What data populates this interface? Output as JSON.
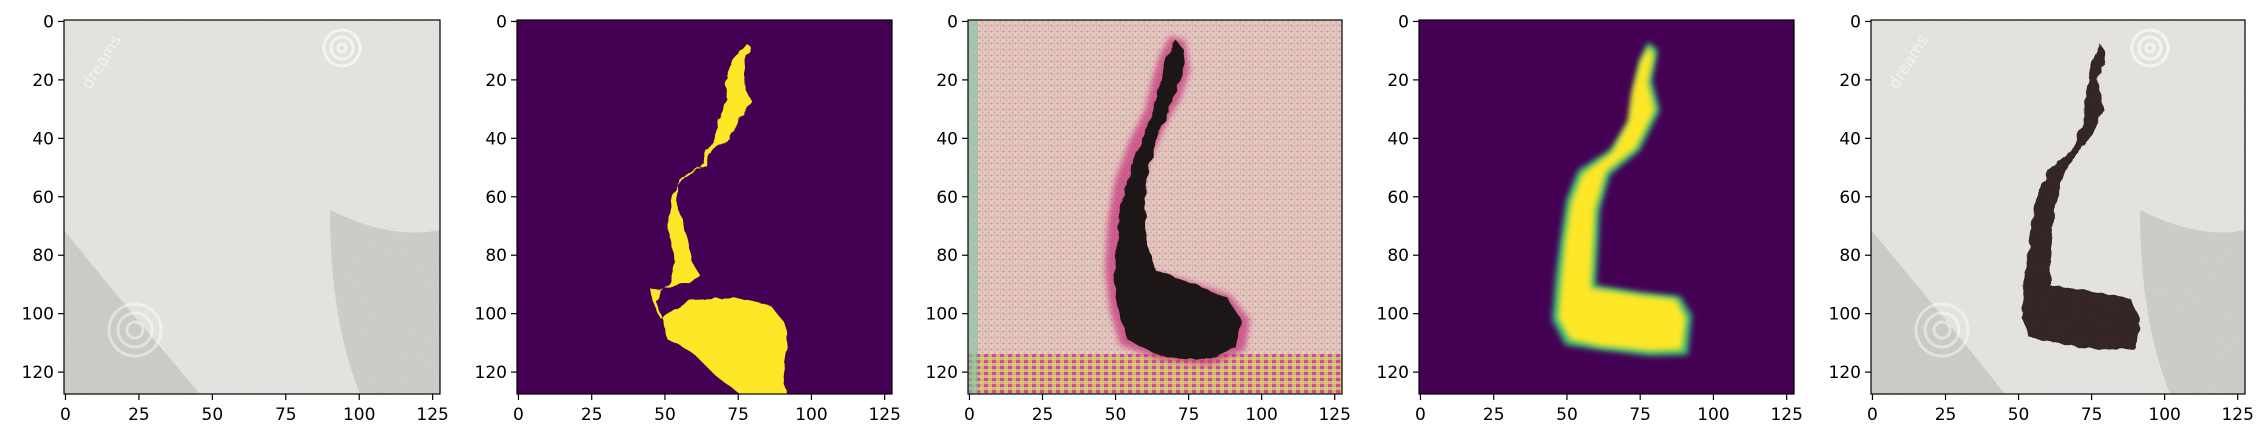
{
  "figure": {
    "panels": [
      {
        "name": "input-photo",
        "kind": "photo",
        "x_ticks": [
          "0",
          "25",
          "50",
          "75",
          "100",
          "125"
        ],
        "y_ticks": [
          "0",
          "20",
          "40",
          "60",
          "80",
          "100",
          "120"
        ],
        "watermark_text": "dreams"
      },
      {
        "name": "ground-truth-mask",
        "kind": "binary-mask",
        "x_ticks": [
          "0",
          "25",
          "50",
          "75",
          "100",
          "125"
        ],
        "y_ticks": [
          "0",
          "20",
          "40",
          "60",
          "80",
          "100",
          "120"
        ]
      },
      {
        "name": "generated-image",
        "kind": "noisy-photo",
        "x_ticks": [
          "0",
          "25",
          "50",
          "75",
          "100",
          "125"
        ],
        "y_ticks": [
          "0",
          "20",
          "40",
          "60",
          "80",
          "100",
          "120"
        ]
      },
      {
        "name": "predicted-mask",
        "kind": "soft-mask",
        "x_ticks": [
          "0",
          "25",
          "50",
          "75",
          "100",
          "125"
        ],
        "y_ticks": [
          "0",
          "20",
          "40",
          "60",
          "80",
          "100",
          "120"
        ]
      },
      {
        "name": "composited-result",
        "kind": "photo-with-stain",
        "x_ticks": [
          "0",
          "25",
          "50",
          "75",
          "100",
          "125"
        ],
        "y_ticks": [
          "0",
          "20",
          "40",
          "60",
          "80",
          "100",
          "120"
        ],
        "watermark_text": "dreams"
      }
    ],
    "colors": {
      "gravel": "#c8c6c1",
      "viridis_background": "#440154",
      "viridis_foreground": "#fde725",
      "viridis_edge": "#35b779",
      "stain": "#1e1414",
      "axis": "#000000"
    }
  }
}
